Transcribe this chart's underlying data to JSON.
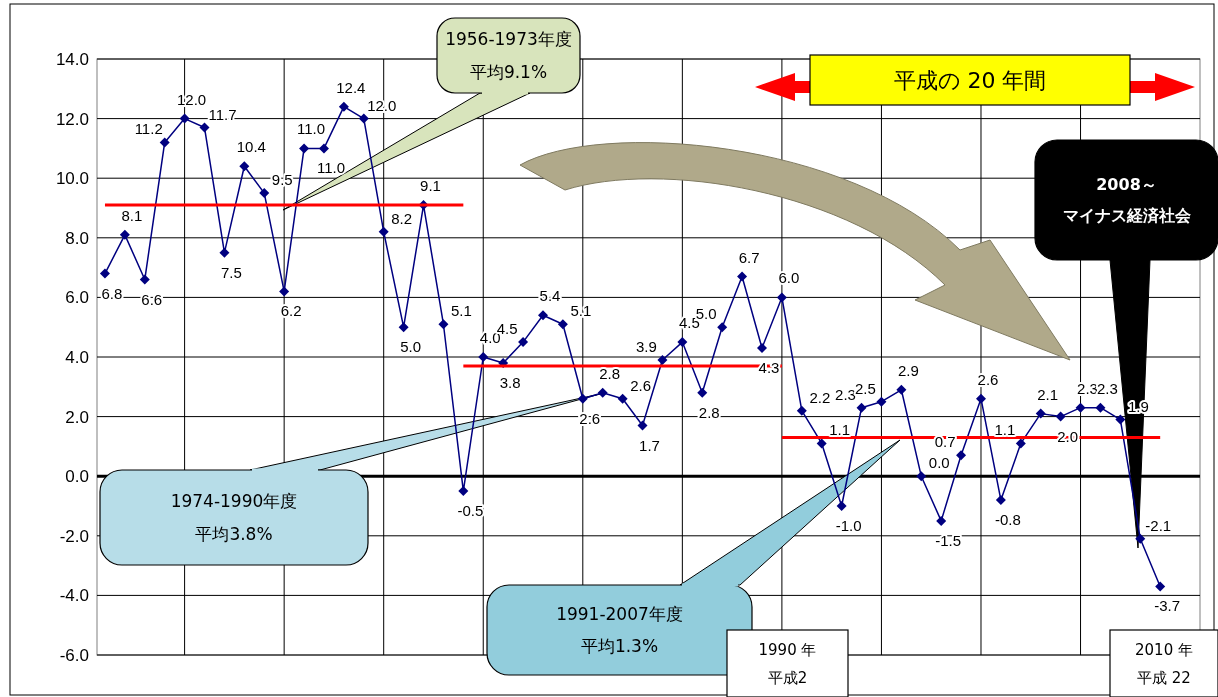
{
  "chart_data": {
    "type": "line",
    "categories": [
      null,
      null,
      null,
      null,
      null,
      null,
      null,
      null,
      null,
      null,
      null,
      null,
      null,
      null,
      null,
      null,
      null,
      null,
      null,
      null,
      null,
      null,
      null,
      null,
      null,
      null,
      null,
      null,
      null,
      null,
      null,
      null,
      null,
      null,
      null,
      null,
      null,
      null,
      null,
      null,
      null,
      null,
      null,
      null,
      null,
      null,
      null,
      null,
      null,
      null,
      null,
      null,
      null,
      null
    ],
    "series": [
      {
        "color": "#000080",
        "marker": "diamond",
        "values": [
          6.8,
          8.1,
          6.6,
          11.2,
          12.0,
          11.7,
          7.5,
          10.4,
          9.5,
          6.2,
          11.0,
          11.0,
          12.4,
          12.0,
          8.2,
          5.0,
          9.1,
          5.1,
          -0.5,
          4.0,
          3.8,
          4.5,
          5.4,
          5.1,
          2.6,
          2.8,
          2.6,
          1.7,
          3.9,
          4.5,
          2.8,
          5.0,
          6.7,
          4.3,
          6.0,
          2.2,
          1.1,
          -1.0,
          2.3,
          2.5,
          2.9,
          0.0,
          -1.5,
          0.7,
          2.6,
          -0.8,
          1.1,
          2.1,
          2.0,
          2.3,
          2.3,
          1.9,
          -2.1,
          -3.7
        ],
        "value_labels": [
          "6.8",
          "8.1",
          "6.6",
          "11.2",
          "12.0",
          "11.7",
          "7.5",
          "10.4",
          "9.5",
          "6.2",
          "11.0",
          "11.0",
          "12.4",
          "12.0",
          "8.2",
          "5.0",
          "9.1",
          "5.1",
          "-0.5",
          "4.0",
          "3.8",
          "4.5",
          "5.4",
          "5.1",
          "2.6",
          "2.8",
          "2.6",
          "1.7",
          "3.9",
          "4.5",
          "2.8",
          "5.0",
          "6.7",
          "4.3",
          "6.0",
          "2.2",
          "1.1",
          "-1.0",
          "2.3",
          "2.5",
          "2.9",
          "0.0",
          "-1.5",
          "0.7",
          "2.6",
          "-0.8",
          "1.1",
          "2.1",
          "2.0",
          "2.3",
          "2.3",
          "1.9",
          "-2.1",
          "-3.7"
        ]
      },
      {
        "type": "line",
        "color": "#ff0000",
        "values": [
          9.1,
          9.1,
          9.1,
          9.1,
          9.1,
          9.1,
          9.1,
          9.1,
          9.1,
          9.1,
          9.1,
          9.1,
          9.1,
          9.1,
          9.1,
          9.1,
          9.1,
          9.1,
          9.1,
          null,
          null,
          null,
          null,
          null,
          null,
          null,
          null,
          null,
          null,
          null,
          null,
          null,
          null,
          null,
          null,
          null,
          null,
          null,
          null,
          null,
          null,
          null,
          null,
          null,
          null,
          null,
          null,
          null,
          null,
          null,
          null,
          null,
          null,
          null
        ]
      },
      {
        "type": "line",
        "color": "#ff0000",
        "values": [
          null,
          null,
          null,
          null,
          null,
          null,
          null,
          null,
          null,
          null,
          null,
          null,
          null,
          null,
          null,
          null,
          null,
          null,
          3.7,
          3.7,
          3.7,
          3.7,
          3.7,
          3.7,
          3.7,
          3.7,
          3.7,
          3.7,
          3.7,
          3.7,
          3.7,
          3.7,
          3.7,
          3.7,
          3.7,
          null,
          null,
          null,
          null,
          null,
          null,
          null,
          null,
          null,
          null,
          null,
          null,
          null,
          null,
          null,
          null,
          null,
          null,
          null
        ]
      },
      {
        "type": "line",
        "color": "#ff0000",
        "values": [
          null,
          null,
          null,
          null,
          null,
          null,
          null,
          null,
          null,
          null,
          null,
          null,
          null,
          null,
          null,
          null,
          null,
          null,
          null,
          null,
          null,
          null,
          null,
          null,
          null,
          null,
          null,
          null,
          null,
          null,
          null,
          null,
          null,
          null,
          1.3,
          1.3,
          1.3,
          1.3,
          1.3,
          1.3,
          1.3,
          1.3,
          1.3,
          1.3,
          1.3,
          1.3,
          1.3,
          1.3,
          1.3,
          1.3,
          1.3,
          1.3,
          1.3,
          1.3
        ]
      }
    ],
    "ylim": [
      -6,
      14
    ],
    "yticks": [
      {
        "value": -6,
        "label": "-6.0"
      },
      {
        "value": -4,
        "label": "-4.0"
      },
      {
        "value": -2,
        "label": "-2.0"
      },
      {
        "value": 0,
        "label": "0.0"
      },
      {
        "value": 2,
        "label": "2.0"
      },
      {
        "value": 4,
        "label": "4.0"
      },
      {
        "value": 6,
        "label": "6.0"
      },
      {
        "value": 8,
        "label": "8.0"
      },
      {
        "value": 10,
        "label": "10.0"
      },
      {
        "value": 12,
        "label": "12.0"
      },
      {
        "value": 14,
        "label": "14.0"
      }
    ],
    "grid": true,
    "ref_lines": [
      {
        "axis": "y",
        "value": 0,
        "color": "#000000"
      }
    ],
    "annotations": [
      "1956-1973年度",
      "平均9.1%",
      "平成の 20 年間",
      "2008～",
      "マイナス経済社会",
      "1974-1990年度",
      "平均3.8%",
      "1991-2007年度",
      "平均1.3%",
      "1990 年",
      "平成2",
      "2010 年",
      "平成 22"
    ]
  }
}
